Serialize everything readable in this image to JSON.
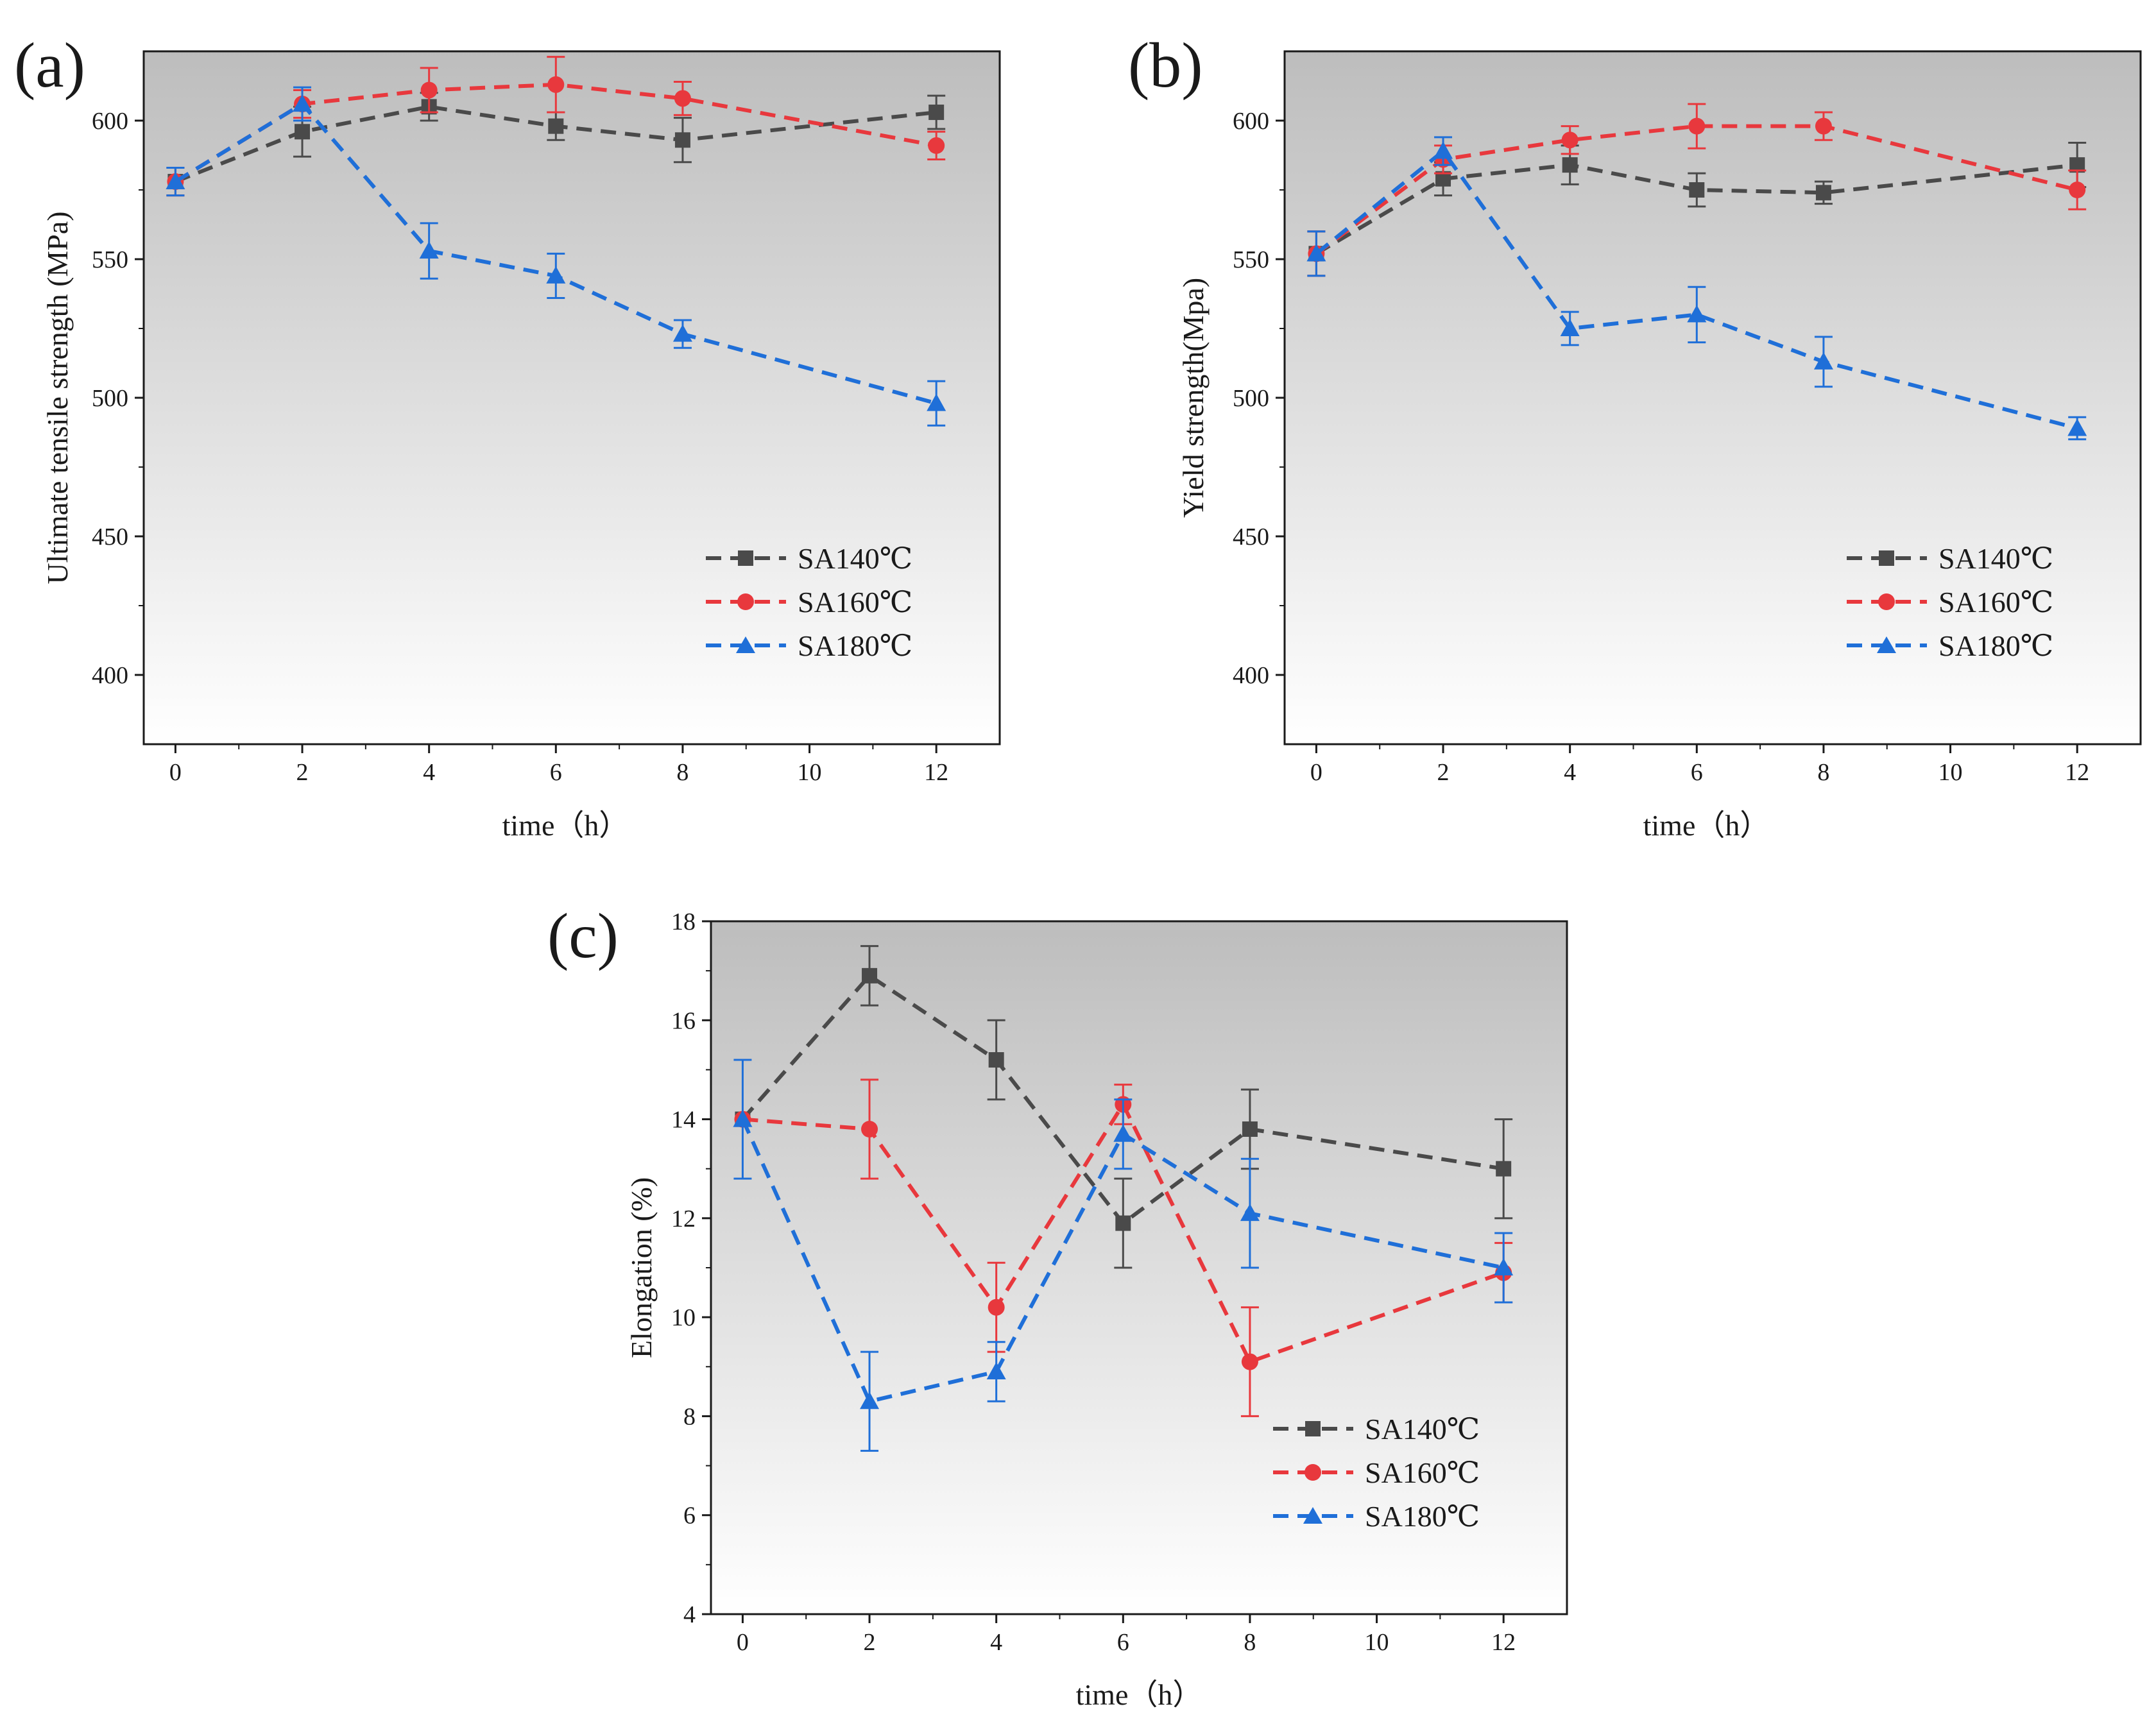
{
  "chart_data": [
    {
      "type": "line",
      "panel_label": "(a)",
      "title": "",
      "xlabel": "time（h）",
      "ylabel": "Ultimate tensile strength (MPa)",
      "xlim": [
        -0.5,
        13
      ],
      "ylim": [
        375,
        625
      ],
      "xticks": [
        0,
        2,
        4,
        6,
        8,
        10,
        12
      ],
      "yticks": [
        400,
        450,
        500,
        550,
        600
      ],
      "x": [
        0,
        2,
        4,
        6,
        8,
        12
      ],
      "series": [
        {
          "name": "SA140℃",
          "color": "#4a4a4a",
          "marker": "square",
          "values": [
            578,
            596,
            605,
            598,
            593,
            603
          ],
          "errors": [
            5,
            9,
            5,
            5,
            8,
            6
          ]
        },
        {
          "name": "SA160℃",
          "color": "#e8383d",
          "marker": "circle",
          "values": [
            578,
            606,
            611,
            613,
            608,
            591
          ],
          "errors": [
            5,
            5,
            8,
            10,
            6,
            5
          ]
        },
        {
          "name": "SA180℃",
          "color": "#1f6fd8",
          "marker": "triangle",
          "values": [
            578,
            606,
            553,
            544,
            523,
            498
          ],
          "errors": [
            5,
            6,
            10,
            8,
            5,
            8
          ]
        }
      ],
      "legend_position": "lower-right",
      "grid": false
    },
    {
      "type": "line",
      "panel_label": "(b)",
      "title": "",
      "xlabel": "time（h）",
      "ylabel": "Yield strength(Mpa)",
      "xlim": [
        -0.5,
        13
      ],
      "ylim": [
        375,
        625
      ],
      "xticks": [
        0,
        2,
        4,
        6,
        8,
        10,
        12
      ],
      "yticks": [
        400,
        450,
        500,
        550,
        600
      ],
      "x": [
        0,
        2,
        4,
        6,
        8,
        12
      ],
      "series": [
        {
          "name": "SA140℃",
          "color": "#4a4a4a",
          "marker": "square",
          "values": [
            552,
            579,
            584,
            575,
            574,
            584
          ],
          "errors": [
            8,
            6,
            7,
            6,
            4,
            8
          ]
        },
        {
          "name": "SA160℃",
          "color": "#e8383d",
          "marker": "circle",
          "values": [
            552,
            586,
            593,
            598,
            598,
            575
          ],
          "errors": [
            8,
            5,
            5,
            8,
            5,
            7
          ]
        },
        {
          "name": "SA180℃",
          "color": "#1f6fd8",
          "marker": "triangle",
          "values": [
            552,
            589,
            525,
            530,
            513,
            489
          ],
          "errors": [
            8,
            5,
            6,
            10,
            9,
            4
          ]
        }
      ],
      "legend_position": "lower-right",
      "grid": false
    },
    {
      "type": "line",
      "panel_label": "(c)",
      "title": "",
      "xlabel": "time（h）",
      "ylabel": "Elongation (%)",
      "xlim": [
        -0.5,
        13
      ],
      "ylim": [
        4,
        18
      ],
      "xticks": [
        0,
        2,
        4,
        6,
        8,
        10,
        12
      ],
      "yticks": [
        4,
        6,
        8,
        10,
        12,
        14,
        16,
        18
      ],
      "x": [
        0,
        2,
        4,
        6,
        8,
        12
      ],
      "series": [
        {
          "name": "SA140℃",
          "color": "#4a4a4a",
          "marker": "square",
          "values": [
            14.0,
            16.9,
            15.2,
            11.9,
            13.8,
            13.0
          ],
          "errors": [
            0.0,
            0.6,
            0.8,
            0.9,
            0.8,
            1.0
          ]
        },
        {
          "name": "SA160℃",
          "color": "#e8383d",
          "marker": "circle",
          "values": [
            14.0,
            13.8,
            10.2,
            14.3,
            9.1,
            10.9
          ],
          "errors": [
            0.0,
            1.0,
            0.9,
            0.4,
            1.1,
            0.6
          ]
        },
        {
          "name": "SA180℃",
          "color": "#1f6fd8",
          "marker": "triangle",
          "values": [
            14.0,
            8.3,
            8.9,
            13.7,
            12.1,
            11.0
          ],
          "errors": [
            1.2,
            1.0,
            0.6,
            0.7,
            1.1,
            0.7
          ]
        }
      ],
      "legend_position": "lower-right",
      "grid": false
    }
  ]
}
